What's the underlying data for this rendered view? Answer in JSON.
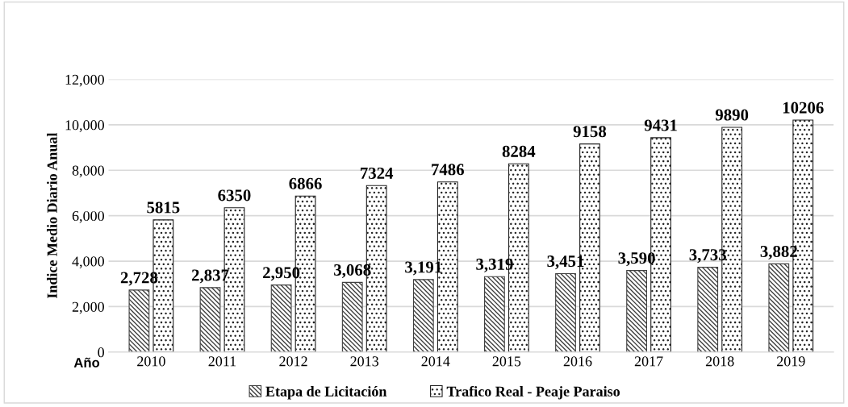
{
  "chart_data": {
    "type": "bar",
    "xlabel": "Año",
    "ylabel": "Indice Medio Diario Anual",
    "categories": [
      "2010",
      "2011",
      "2012",
      "2013",
      "2014",
      "2015",
      "2016",
      "2017",
      "2018",
      "2019"
    ],
    "series": [
      {
        "name": "Etapa de Licitación",
        "color": "#404040",
        "values": [
          2728,
          2837,
          2950,
          3068,
          3191,
          3319,
          3451,
          3590,
          3733,
          3882
        ],
        "value_labels": [
          "2,728",
          "2,837",
          "2,950",
          "3,068",
          "3,191",
          "3,319",
          "3,451",
          "3,590",
          "3,733",
          "3,882"
        ]
      },
      {
        "name": "Trafico Real - Peaje Paraiso",
        "color": "#202020",
        "values": [
          5815,
          6350,
          6866,
          7324,
          7486,
          8284,
          9158,
          9431,
          9890,
          10206
        ],
        "value_labels": [
          "5815",
          "6350",
          "6866",
          "7324",
          "7486",
          "8284",
          "9158",
          "9431",
          "9890",
          "10206"
        ]
      }
    ],
    "ylim": [
      0,
      12000
    ],
    "yticks": [
      {
        "value": 0,
        "label": "0"
      },
      {
        "value": 2000,
        "label": "2,000"
      },
      {
        "value": 4000,
        "label": "4,000"
      },
      {
        "value": 6000,
        "label": "6,000"
      },
      {
        "value": 8000,
        "label": "8,000"
      },
      {
        "value": 10000,
        "label": "10,000"
      },
      {
        "value": 12000,
        "label": "12,000"
      }
    ],
    "grid": "y",
    "legend": "bottom"
  }
}
